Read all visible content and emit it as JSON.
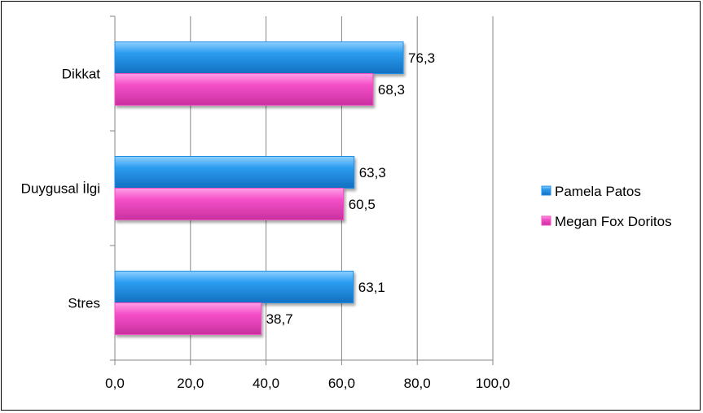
{
  "chart_data": {
    "type": "bar",
    "orientation": "horizontal",
    "categories": [
      "Dikkat",
      "Duygusal İlgi",
      "Stres"
    ],
    "series": [
      {
        "name": "Pamela Patos",
        "color": "#1e90e8",
        "values": [
          76.3,
          63.3,
          63.1
        ],
        "labels": [
          "76,3",
          "63,3",
          "63,1"
        ]
      },
      {
        "name": "Megan Fox Doritos",
        "color": "#f24fc4",
        "values": [
          68.3,
          60.5,
          38.7
        ],
        "labels": [
          "68,3",
          "60,5",
          "38,7"
        ]
      }
    ],
    "xlim": [
      0,
      100
    ],
    "xticks": [
      0,
      20,
      40,
      60,
      80,
      100
    ],
    "xtick_labels": [
      "0,0",
      "20,0",
      "40,0",
      "60,0",
      "80,0",
      "100,0"
    ],
    "grid": true,
    "legend_position": "right",
    "title": "",
    "xlabel": "",
    "ylabel": ""
  }
}
